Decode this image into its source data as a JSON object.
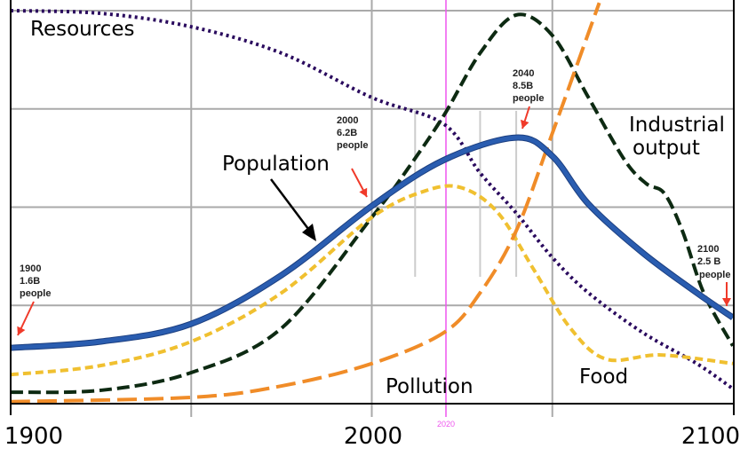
{
  "chart_data": {
    "type": "line",
    "title": "",
    "xlabel": "",
    "ylabel": "",
    "xlim": [
      1900,
      2100
    ],
    "ylim": [
      0,
      100
    ],
    "x_ticks": [
      "1900",
      "2000",
      "2100"
    ],
    "grid": true,
    "marker_line": {
      "x": 2020,
      "label": "2020",
      "color": "#ee55ee"
    },
    "series": [
      {
        "name": "Resources",
        "color": "#2a0a5e",
        "style": "dotted",
        "x": [
          1900,
          1925,
          1950,
          1975,
          2000,
          2020,
          2030,
          2040,
          2050,
          2060,
          2075,
          2090,
          2100
        ],
        "y": [
          100,
          99.3,
          95.9,
          89.2,
          77.9,
          71.1,
          58.7,
          48.5,
          37.2,
          28.2,
          18.1,
          10.2,
          3.8
        ]
      },
      {
        "name": "Industrial output",
        "color": "#0d2a12",
        "style": "dashed",
        "x": [
          1900,
          1925,
          1950,
          1975,
          2000,
          2010,
          2020,
          2030,
          2040,
          2050,
          2060,
          2070,
          2076,
          2081,
          2086,
          2092,
          2100
        ],
        "y": [
          2.9,
          3.4,
          7.9,
          19.2,
          47.4,
          59.8,
          73.4,
          89.2,
          98.9,
          93.7,
          77.9,
          62,
          56,
          53.5,
          44,
          28,
          14.7
        ]
      },
      {
        "name": "Food",
        "color": "#f0c030",
        "style": "short-dashed",
        "x": [
          1900,
          1925,
          1950,
          1975,
          2000,
          2015,
          2025,
          2035,
          2045,
          2055,
          2065,
          2080,
          2100
        ],
        "y": [
          7.4,
          9.7,
          15.8,
          28.2,
          47.4,
          54.2,
          54.9,
          48.5,
          33.9,
          19.2,
          11.3,
          12.4,
          10.2
        ]
      },
      {
        "name": "Pollution",
        "color": "#f08c28",
        "style": "long-dashed",
        "x": [
          1900,
          1950,
          1975,
          2000,
          2020,
          2030,
          2040,
          2050,
          2063
        ],
        "y": [
          0.5,
          1.6,
          4.5,
          10.2,
          18.1,
          28.2,
          44,
          68.8,
          102
        ]
      },
      {
        "name": "Population",
        "color": "#2a5db0",
        "style": "solid",
        "x": [
          1900,
          1925,
          1950,
          1975,
          2000,
          2020,
          2040,
          2050,
          2060,
          2075,
          2090,
          2100
        ],
        "y": [
          14.2,
          15.8,
          20.3,
          32.7,
          50.3,
          62,
          67.7,
          63,
          50.8,
          38.4,
          28.2,
          21.9
        ]
      }
    ],
    "annotations": [
      {
        "year": "1900",
        "pop": "1.6B",
        "unit": "people"
      },
      {
        "year": "2000",
        "pop": "6.2B",
        "unit": "people"
      },
      {
        "year": "2040",
        "pop": "8.5B",
        "unit": "people"
      },
      {
        "year": "2100",
        "pop": "2.5 B",
        "unit": "people"
      }
    ],
    "labels": {
      "resources": "Resources",
      "population": "Population",
      "industrial_1": "Industrial",
      "industrial_2": "output",
      "pollution": "Pollution",
      "food": "Food"
    }
  }
}
